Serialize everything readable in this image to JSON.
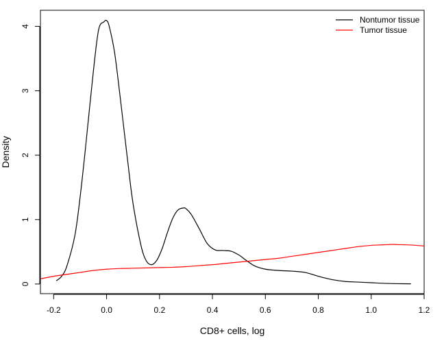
{
  "chart_data": {
    "type": "line",
    "xlabel": "CD8+ cells, log",
    "ylabel": "Density",
    "xlim": [
      -0.25,
      1.2
    ],
    "ylim": [
      -0.15,
      4.25
    ],
    "x_ticks": [
      -0.2,
      0.0,
      0.2,
      0.4,
      0.6,
      0.8,
      1.0,
      1.2
    ],
    "x_tick_labels": [
      "-0.2",
      "0.0",
      "0.2",
      "0.4",
      "0.6",
      "0.8",
      "1.0",
      "1.2"
    ],
    "y_ticks": [
      0,
      1,
      2,
      3,
      4
    ],
    "y_tick_labels": [
      "0",
      "1",
      "2",
      "3",
      "4"
    ],
    "grid": false,
    "legend_position": "top-right",
    "series": [
      {
        "name": "Nontumor tissue",
        "color": "#000000",
        "x": [
          -0.19,
          -0.17,
          -0.15,
          -0.12,
          -0.1,
          -0.08,
          -0.05,
          -0.03,
          -0.01,
          0.0,
          0.01,
          0.03,
          0.05,
          0.08,
          0.1,
          0.13,
          0.15,
          0.17,
          0.19,
          0.21,
          0.23,
          0.25,
          0.27,
          0.29,
          0.3,
          0.32,
          0.35,
          0.38,
          0.41,
          0.44,
          0.47,
          0.5,
          0.53,
          0.56,
          0.6,
          0.65,
          0.7,
          0.75,
          0.8,
          0.85,
          0.9,
          0.95,
          1.0,
          1.05,
          1.1,
          1.15
        ],
        "y": [
          0.05,
          0.12,
          0.28,
          0.75,
          1.35,
          2.1,
          3.3,
          3.95,
          4.07,
          4.09,
          4.0,
          3.6,
          2.95,
          1.9,
          1.25,
          0.6,
          0.36,
          0.3,
          0.37,
          0.55,
          0.8,
          1.02,
          1.15,
          1.18,
          1.17,
          1.08,
          0.86,
          0.63,
          0.53,
          0.52,
          0.51,
          0.45,
          0.36,
          0.28,
          0.23,
          0.21,
          0.2,
          0.18,
          0.12,
          0.07,
          0.04,
          0.03,
          0.02,
          0.01,
          0.005,
          0.003
        ]
      },
      {
        "name": "Tumor tissue",
        "color": "#ff0000",
        "x": [
          -0.25,
          -0.2,
          -0.15,
          -0.1,
          -0.05,
          0.0,
          0.05,
          0.1,
          0.15,
          0.2,
          0.25,
          0.3,
          0.35,
          0.4,
          0.45,
          0.5,
          0.55,
          0.6,
          0.65,
          0.7,
          0.75,
          0.8,
          0.85,
          0.9,
          0.95,
          1.0,
          1.05,
          1.08,
          1.1,
          1.15,
          1.2
        ],
        "y": [
          0.08,
          0.12,
          0.15,
          0.18,
          0.21,
          0.23,
          0.24,
          0.245,
          0.25,
          0.255,
          0.26,
          0.27,
          0.285,
          0.3,
          0.32,
          0.34,
          0.36,
          0.38,
          0.4,
          0.43,
          0.46,
          0.49,
          0.52,
          0.55,
          0.58,
          0.6,
          0.61,
          0.615,
          0.612,
          0.605,
          0.59
        ]
      }
    ]
  }
}
